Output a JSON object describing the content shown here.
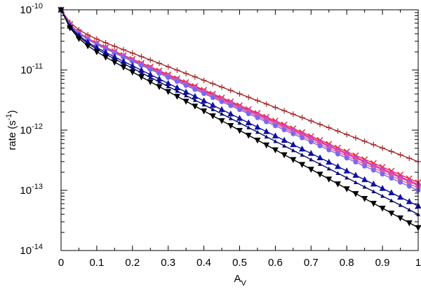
{
  "chart_data": {
    "type": "line",
    "title": "",
    "xlabel": {
      "base": "A",
      "sub": "V"
    },
    "ylabel": {
      "prefix": "rate (s",
      "sup": "-1",
      "suffix": ")"
    },
    "xlim": [
      0,
      1
    ],
    "ylim": [
      1e-14,
      1e-10
    ],
    "yscale": "log",
    "grid": false,
    "legend": "none",
    "x_ticks": [
      {
        "value": 0,
        "label": "0"
      },
      {
        "value": 0.1,
        "label": "0.1"
      },
      {
        "value": 0.2,
        "label": "0.2"
      },
      {
        "value": 0.3,
        "label": "0.3"
      },
      {
        "value": 0.4,
        "label": "0.4"
      },
      {
        "value": 0.5,
        "label": "0.5"
      },
      {
        "value": 0.6,
        "label": "0.6"
      },
      {
        "value": 0.7,
        "label": "0.7"
      },
      {
        "value": 0.8,
        "label": "0.8"
      },
      {
        "value": 0.9,
        "label": "0.9"
      },
      {
        "value": 1,
        "label": "1"
      }
    ],
    "y_ticks": [
      {
        "value": 1e-14,
        "base": "10",
        "exp": "-14"
      },
      {
        "value": 1e-13,
        "base": "10",
        "exp": "-13"
      },
      {
        "value": 1e-12,
        "base": "10",
        "exp": "-12"
      },
      {
        "value": 1e-11,
        "base": "10",
        "exp": "-11"
      },
      {
        "value": 1e-10,
        "base": "10",
        "exp": "-10"
      }
    ],
    "series": [
      {
        "color": "#a52a2a",
        "marker": "plus",
        "y_at_0": 1e-10,
        "y_at_1": 3e-13
      },
      {
        "color": "#e8262e",
        "marker": "x",
        "y_at_0": 1e-10,
        "y_at_1": 1.35e-13
      },
      {
        "color": "#ff1493",
        "marker": "circle",
        "y_at_0": 1e-10,
        "y_at_1": 1.25e-13
      },
      {
        "color": "#cc44cc",
        "marker": "square",
        "y_at_0": 1e-10,
        "y_at_1": 1.2e-13
      },
      {
        "color": "#d4609a",
        "marker": "circle",
        "y_at_0": 1e-10,
        "y_at_1": 1.1e-13
      },
      {
        "color": "#7b68ee",
        "marker": "circle",
        "y_at_0": 1e-10,
        "y_at_1": 1e-13
      },
      {
        "color": "#1010a0",
        "marker": "triangle-up",
        "y_at_0": 1e-10,
        "y_at_1": 5.5e-14
      },
      {
        "color": "#0a0a6e",
        "marker": "small-triangle",
        "y_at_0": 1e-10,
        "y_at_1": 4e-14
      },
      {
        "color": "#000000",
        "marker": "triangle-down",
        "y_at_0": 1e-10,
        "y_at_1": 2.4e-14
      }
    ]
  }
}
